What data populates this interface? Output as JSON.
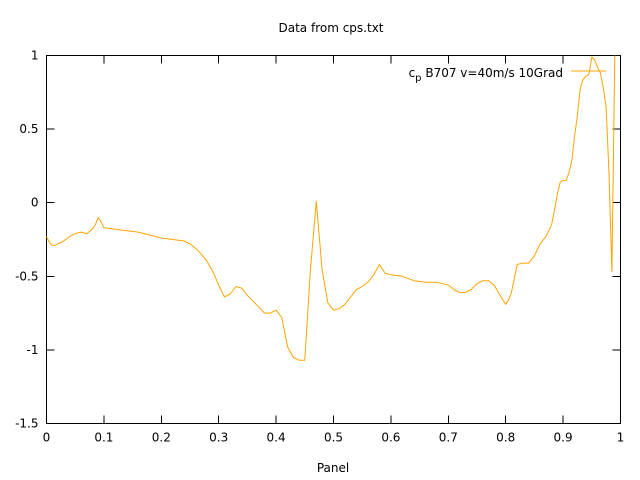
{
  "chart_data": {
    "type": "line",
    "title": "Data from cps.txt",
    "xlabel": "Panel",
    "ylabel": "",
    "xlim": [
      0,
      1
    ],
    "ylim": [
      -1.5,
      1
    ],
    "grid": false,
    "legend_position": "top-right",
    "xticks": [
      0,
      0.1,
      0.2,
      0.3,
      0.4,
      0.5,
      0.6,
      0.7,
      0.8,
      0.9,
      1
    ],
    "xtick_labels": [
      "0",
      "0.1",
      "0.2",
      "0.3",
      "0.4",
      "0.5",
      "0.6",
      "0.7",
      "0.8",
      "0.9",
      "1"
    ],
    "yticks": [
      -1.5,
      -1,
      -0.5,
      0,
      0.5,
      1
    ],
    "ytick_labels": [
      "-1.5",
      "-1",
      "-0.5",
      "0",
      "0.5",
      "1"
    ],
    "series": [
      {
        "name_main": "c",
        "name_sub": "p",
        "name_rest": " B707 v=40m/s 10Grad",
        "color": "#ffa500",
        "x": [
          0.0,
          0.005,
          0.01,
          0.015,
          0.02,
          0.03,
          0.04,
          0.05,
          0.06,
          0.07,
          0.08,
          0.085,
          0.09,
          0.095,
          0.1,
          0.12,
          0.14,
          0.16,
          0.18,
          0.2,
          0.22,
          0.24,
          0.25,
          0.26,
          0.27,
          0.28,
          0.29,
          0.3,
          0.31,
          0.32,
          0.33,
          0.34,
          0.35,
          0.36,
          0.37,
          0.38,
          0.39,
          0.4,
          0.41,
          0.42,
          0.43,
          0.44,
          0.45,
          0.46,
          0.47,
          0.48,
          0.49,
          0.5,
          0.51,
          0.52,
          0.53,
          0.54,
          0.55,
          0.56,
          0.57,
          0.58,
          0.585,
          0.59,
          0.6,
          0.62,
          0.64,
          0.66,
          0.68,
          0.7,
          0.71,
          0.72,
          0.73,
          0.74,
          0.75,
          0.76,
          0.77,
          0.78,
          0.79,
          0.8,
          0.805,
          0.81,
          0.82,
          0.83,
          0.84,
          0.85,
          0.86,
          0.87,
          0.875,
          0.88,
          0.885,
          0.89,
          0.895,
          0.9,
          0.905,
          0.91,
          0.915,
          0.92,
          0.925,
          0.93,
          0.935,
          0.94,
          0.945,
          0.95,
          0.955,
          0.96,
          0.965,
          0.97,
          0.975,
          0.98,
          0.985,
          0.99
        ],
        "values": [
          -0.23,
          -0.27,
          -0.29,
          -0.29,
          -0.28,
          -0.26,
          -0.23,
          -0.21,
          -0.2,
          -0.21,
          -0.18,
          -0.15,
          -0.1,
          -0.13,
          -0.17,
          -0.18,
          -0.19,
          -0.2,
          -0.22,
          -0.24,
          -0.25,
          -0.26,
          -0.28,
          -0.31,
          -0.35,
          -0.4,
          -0.47,
          -0.56,
          -0.64,
          -0.62,
          -0.57,
          -0.58,
          -0.63,
          -0.67,
          -0.71,
          -0.75,
          -0.75,
          -0.73,
          -0.78,
          -0.98,
          -1.05,
          -1.07,
          -1.07,
          -0.45,
          0.01,
          -0.45,
          -0.68,
          -0.73,
          -0.72,
          -0.69,
          -0.64,
          -0.59,
          -0.57,
          -0.54,
          -0.49,
          -0.42,
          -0.45,
          -0.48,
          -0.49,
          -0.5,
          -0.53,
          -0.54,
          -0.54,
          -0.56,
          -0.59,
          -0.61,
          -0.61,
          -0.59,
          -0.55,
          -0.53,
          -0.53,
          -0.56,
          -0.63,
          -0.69,
          -0.66,
          -0.61,
          -0.42,
          -0.41,
          -0.41,
          -0.36,
          -0.28,
          -0.23,
          -0.19,
          -0.15,
          -0.05,
          0.06,
          0.14,
          0.15,
          0.15,
          0.2,
          0.28,
          0.45,
          0.6,
          0.78,
          0.84,
          0.86,
          0.87,
          0.99,
          0.97,
          0.92,
          0.88,
          0.78,
          0.65,
          0.2,
          -0.47,
          1.0
        ]
      }
    ]
  }
}
